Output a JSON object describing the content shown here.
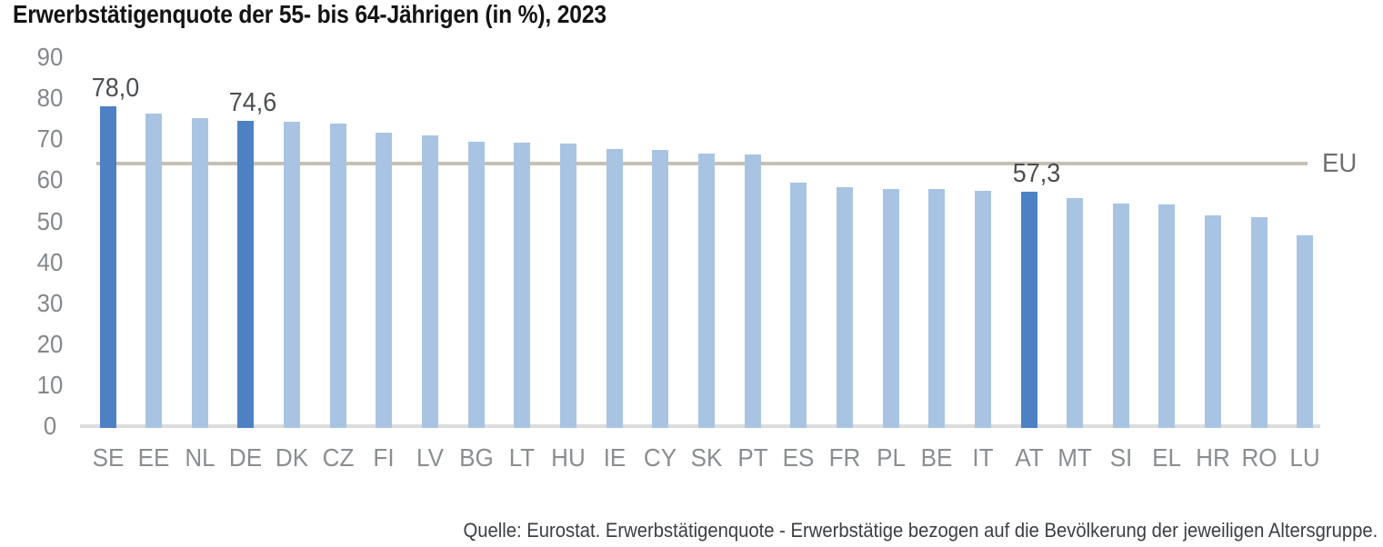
{
  "title": "Erwerbstätigenquote der 55- bis 64-Jährigen (in %), 2023",
  "source": "Quelle: Eurostat. Erwerbstätigenquote - Erwerbstätige bezogen auf die Bevölkerung der jeweiligen Altersgruppe.",
  "colors": {
    "bar_default": "#a9c4e3",
    "bar_highlight": "#4e81c3",
    "eu_line": "#c7c0b5",
    "axis_line": "#dcdcdc",
    "axis_text": "#85888b",
    "value_text": "#4b4f52",
    "title_text": "#141414",
    "source_text": "#3b3f42"
  },
  "chart_data": {
    "type": "bar",
    "title": "Erwerbstätigenquote der 55- bis 64-Jährigen (in %), 2023",
    "unit": "%",
    "categories": [
      "SE",
      "EE",
      "NL",
      "DE",
      "DK",
      "CZ",
      "FI",
      "LV",
      "BG",
      "LT",
      "HU",
      "IE",
      "CY",
      "SK",
      "PT",
      "ES",
      "FR",
      "PL",
      "BE",
      "IT",
      "AT",
      "MT",
      "SI",
      "EL",
      "HR",
      "RO",
      "LU"
    ],
    "values": [
      78.0,
      76.2,
      75.1,
      74.6,
      74.2,
      73.8,
      71.7,
      70.9,
      69.5,
      69.1,
      69.0,
      67.7,
      67.3,
      66.5,
      66.3,
      59.5,
      58.4,
      57.9,
      57.8,
      57.4,
      57.3,
      55.6,
      54.4,
      54.1,
      51.5,
      51.1,
      46.5
    ],
    "highlighted": [
      "SE",
      "DE",
      "AT"
    ],
    "value_labels": {
      "SE": "78,0",
      "DE": "74,6",
      "AT": "57,3"
    },
    "reference_line": {
      "label": "EU",
      "value": 64.0
    },
    "y_axis": {
      "min": 0,
      "max": 90,
      "step": 10,
      "ticks": [
        0,
        10,
        20,
        30,
        40,
        50,
        60,
        70,
        80,
        90
      ]
    },
    "grid": false,
    "legend": "none"
  }
}
